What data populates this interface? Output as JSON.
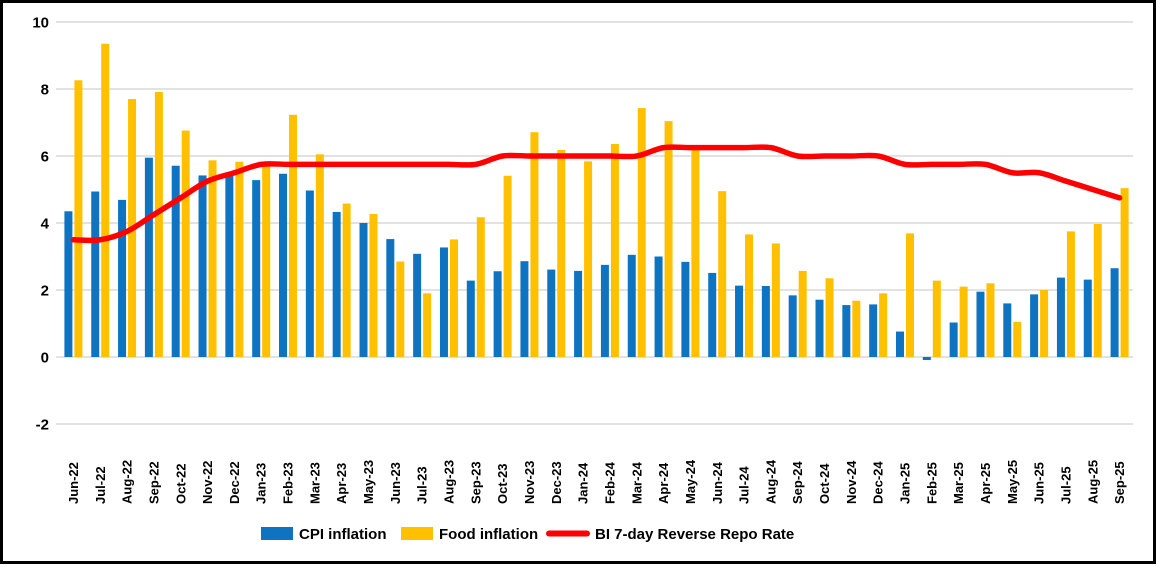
{
  "chart_data": {
    "type": "bar",
    "title": "",
    "xlabel": "",
    "ylabel": "",
    "ylim": [
      -2,
      10
    ],
    "yticks": [
      10,
      8,
      6,
      4,
      2,
      0,
      -2
    ],
    "grid": true,
    "gridline_color": "#D9D9D9",
    "background_color": "#FFFFFF",
    "frame_border_color": "#000000",
    "legend_position": "bottom",
    "categories": [
      "Jun-22",
      "Jul-22",
      "Aug-22",
      "Sep-22",
      "Oct-22",
      "Nov-22",
      "Dec-22",
      "Jan-23",
      "Feb-23",
      "Mar-23",
      "Apr-23",
      "May-23",
      "Jun-23",
      "Jul-23",
      "Aug-23",
      "Sep-23",
      "Oct-23",
      "Nov-23",
      "Dec-23",
      "Jan-24",
      "Feb-24",
      "Mar-24",
      "Apr-24",
      "May-24",
      "Jun-24",
      "Jul-24",
      "Aug-24",
      "Sep-24",
      "Oct-24",
      "Nov-24",
      "Dec-24",
      "Jan-25",
      "Feb-25",
      "Mar-25",
      "Apr-25",
      "May-25",
      "Jun-25",
      "Jul-25",
      "Aug-25",
      "Sep-25"
    ],
    "series": [
      {
        "name": "CPI inflation",
        "render": "bar",
        "color": "#0E74C2",
        "values": [
          4.35,
          4.94,
          4.69,
          5.95,
          5.71,
          5.42,
          5.51,
          5.28,
          5.47,
          4.97,
          4.33,
          4.0,
          3.52,
          3.08,
          3.27,
          2.28,
          2.56,
          2.86,
          2.61,
          2.57,
          2.75,
          3.05,
          3.0,
          2.84,
          2.51,
          2.13,
          2.12,
          1.84,
          1.71,
          1.55,
          1.57,
          0.76,
          -0.09,
          1.03,
          1.95,
          1.6,
          1.87,
          2.37,
          2.31,
          2.65
        ]
      },
      {
        "name": "Food inflation",
        "render": "bar",
        "color": "#FFC000",
        "values": [
          8.26,
          9.35,
          7.7,
          7.91,
          6.76,
          5.87,
          5.83,
          5.71,
          7.23,
          6.05,
          4.58,
          4.27,
          2.85,
          1.9,
          3.51,
          4.17,
          5.41,
          6.71,
          6.18,
          5.84,
          6.36,
          7.43,
          7.04,
          6.18,
          4.95,
          3.66,
          3.39,
          2.57,
          2.35,
          1.68,
          1.9,
          3.69,
          2.28,
          2.1,
          2.2,
          1.05,
          2.0,
          3.75,
          3.97,
          5.04
        ]
      },
      {
        "name": "BI 7-day Reverse Repo Rate",
        "render": "line",
        "color": "#FF0000",
        "values": [
          3.5,
          3.5,
          3.75,
          4.25,
          4.75,
          5.25,
          5.5,
          5.75,
          5.75,
          5.75,
          5.75,
          5.75,
          5.75,
          5.75,
          5.75,
          5.75,
          6.0,
          6.0,
          6.0,
          6.0,
          6.0,
          6.0,
          6.25,
          6.25,
          6.25,
          6.25,
          6.25,
          6.0,
          6.0,
          6.0,
          6.0,
          5.75,
          5.75,
          5.75,
          5.75,
          5.5,
          5.5,
          5.25,
          5.0,
          4.75
        ]
      }
    ]
  }
}
